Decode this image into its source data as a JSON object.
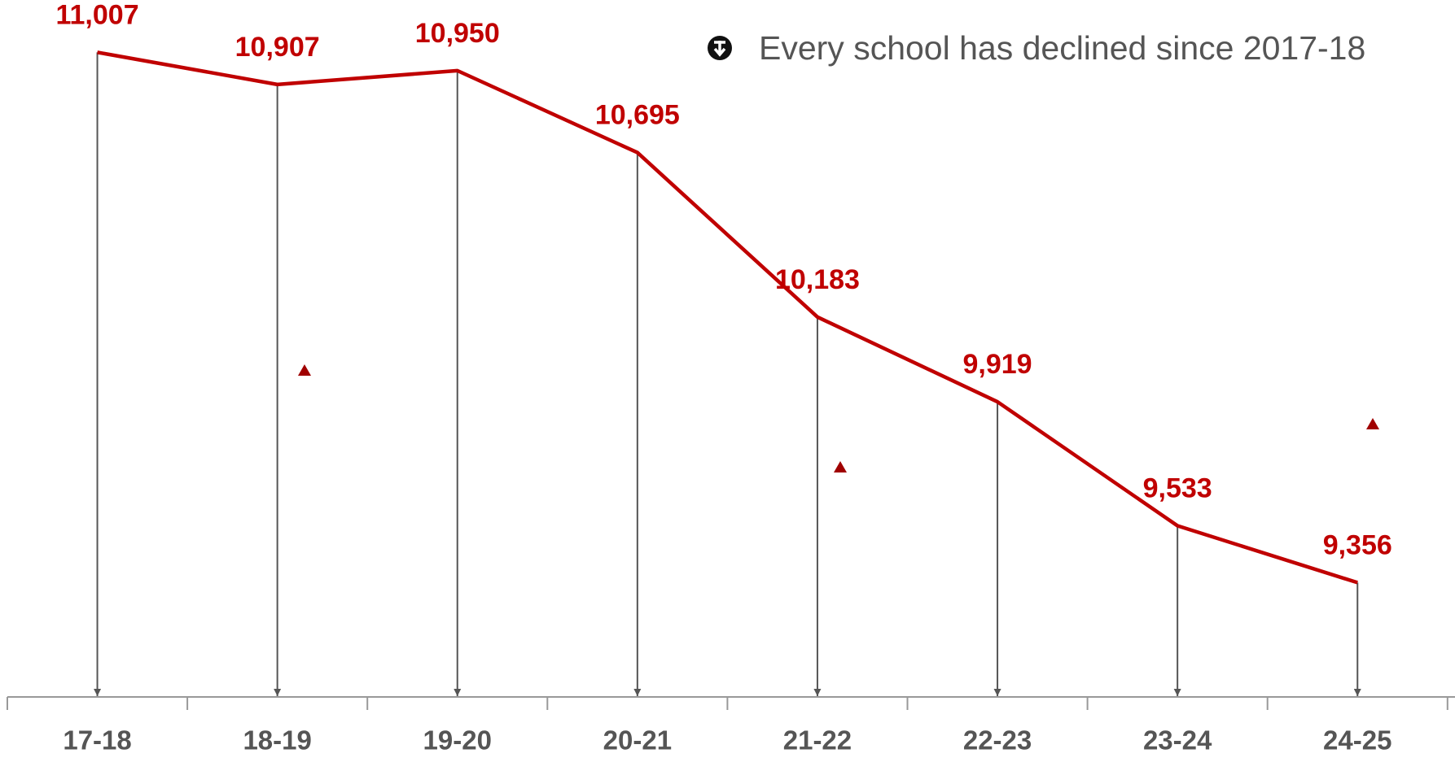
{
  "chart_data": {
    "type": "line",
    "annotation": "Every school has declined since 2017-18",
    "categories": [
      "17-18",
      "18-19",
      "19-20",
      "20-21",
      "21-22",
      "22-23",
      "23-24",
      "24-25"
    ],
    "series": [
      {
        "color": "#c00000",
        "values": [
          11007,
          10907,
          10950,
          10695,
          10183,
          9919,
          9533,
          9356
        ],
        "value_labels": [
          "11,007",
          "10,907",
          "10,950",
          "10,695",
          "10,183",
          "9,919",
          "9,533",
          "9,356"
        ]
      }
    ],
    "ylim": [
      9000,
      11170
    ],
    "grid": false
  }
}
